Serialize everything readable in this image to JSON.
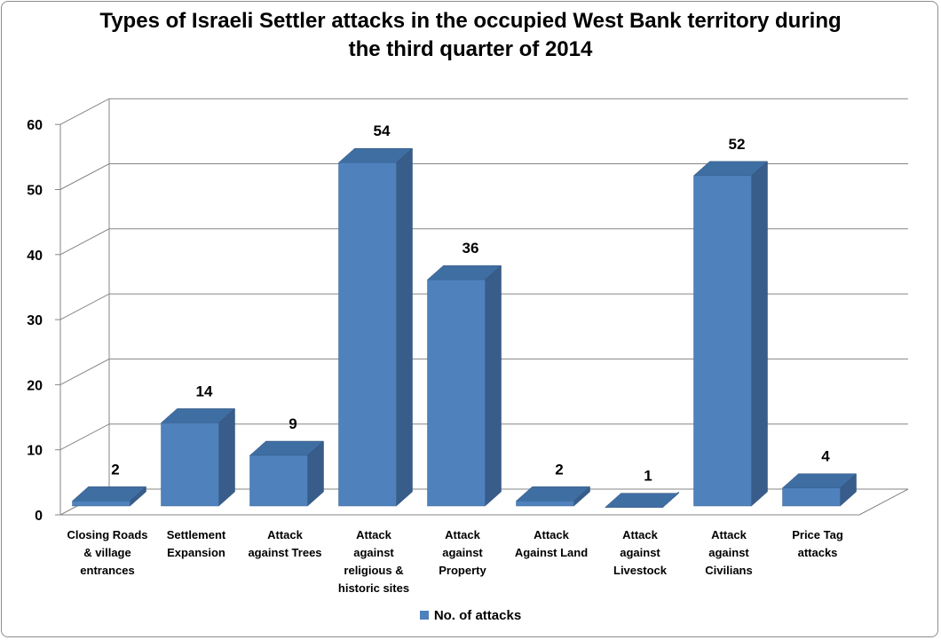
{
  "chart_data": {
    "type": "bar",
    "title_line1": "Types of Israeli Settler attacks in the occupied West Bank territory during",
    "title_line2": "the third quarter of 2014",
    "categories": [
      [
        "Closing Roads",
        "& village",
        "entrances"
      ],
      [
        "Settlement",
        "Expansion"
      ],
      [
        "Attack",
        "against Trees"
      ],
      [
        "Attack",
        "against",
        "religious &",
        "historic sites"
      ],
      [
        "Attack",
        "against",
        "Property"
      ],
      [
        "Attack",
        "Against Land"
      ],
      [
        "Attack",
        "against",
        "Livestock"
      ],
      [
        "Attack",
        "against",
        "Civilians"
      ],
      [
        "Price Tag",
        "attacks"
      ]
    ],
    "series": [
      {
        "name": "No. of attacks",
        "values": [
          2,
          14,
          9,
          54,
          36,
          2,
          1,
          52,
          4
        ]
      }
    ],
    "ylim": [
      0,
      60
    ],
    "yticks": [
      0,
      10,
      20,
      30,
      40,
      50,
      60
    ],
    "grid": true,
    "legend_position": "bottom",
    "bar_color": "#4f81bd",
    "bar_side_color": "#385d8a",
    "bar_top_color": "#3f6ea3"
  }
}
